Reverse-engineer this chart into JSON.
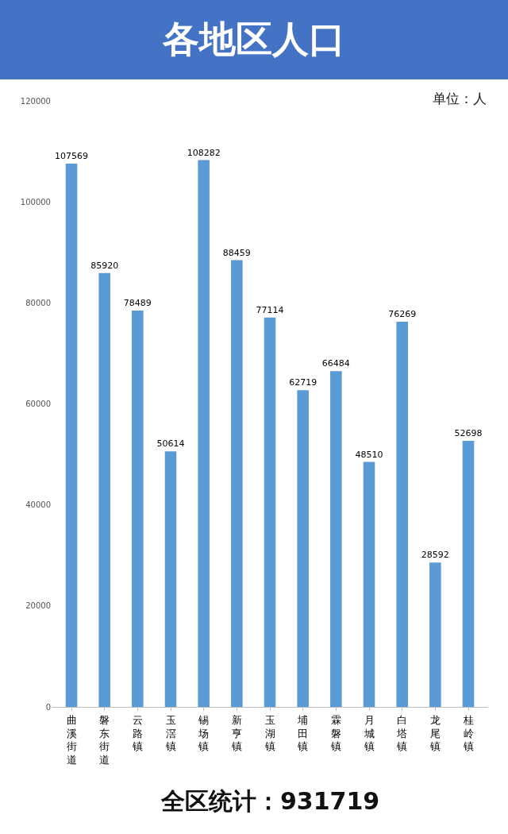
{
  "chart_data": {
    "type": "bar",
    "title": "各地区人口",
    "categories": [
      "曲溪街道",
      "磐东街道",
      "云路镇",
      "玉滘镇",
      "锡场镇",
      "新亨镇",
      "玉湖镇",
      "埔田镇",
      "霖磐镇",
      "月城镇",
      "白塔镇",
      "龙尾镇",
      "桂岭镇"
    ],
    "values": [
      107569,
      85920,
      78489,
      50614,
      108282,
      88459,
      77114,
      62719,
      66484,
      48510,
      76269,
      28592,
      52698
    ],
    "color": "#5b9bd5",
    "ylim": [
      0,
      120000
    ],
    "yticks": [
      0,
      20000,
      40000,
      60000,
      80000,
      100000,
      120000
    ],
    "grid": false,
    "data_labels": true,
    "annotations": [
      "单位：人",
      "全区统计：931719"
    ]
  }
}
